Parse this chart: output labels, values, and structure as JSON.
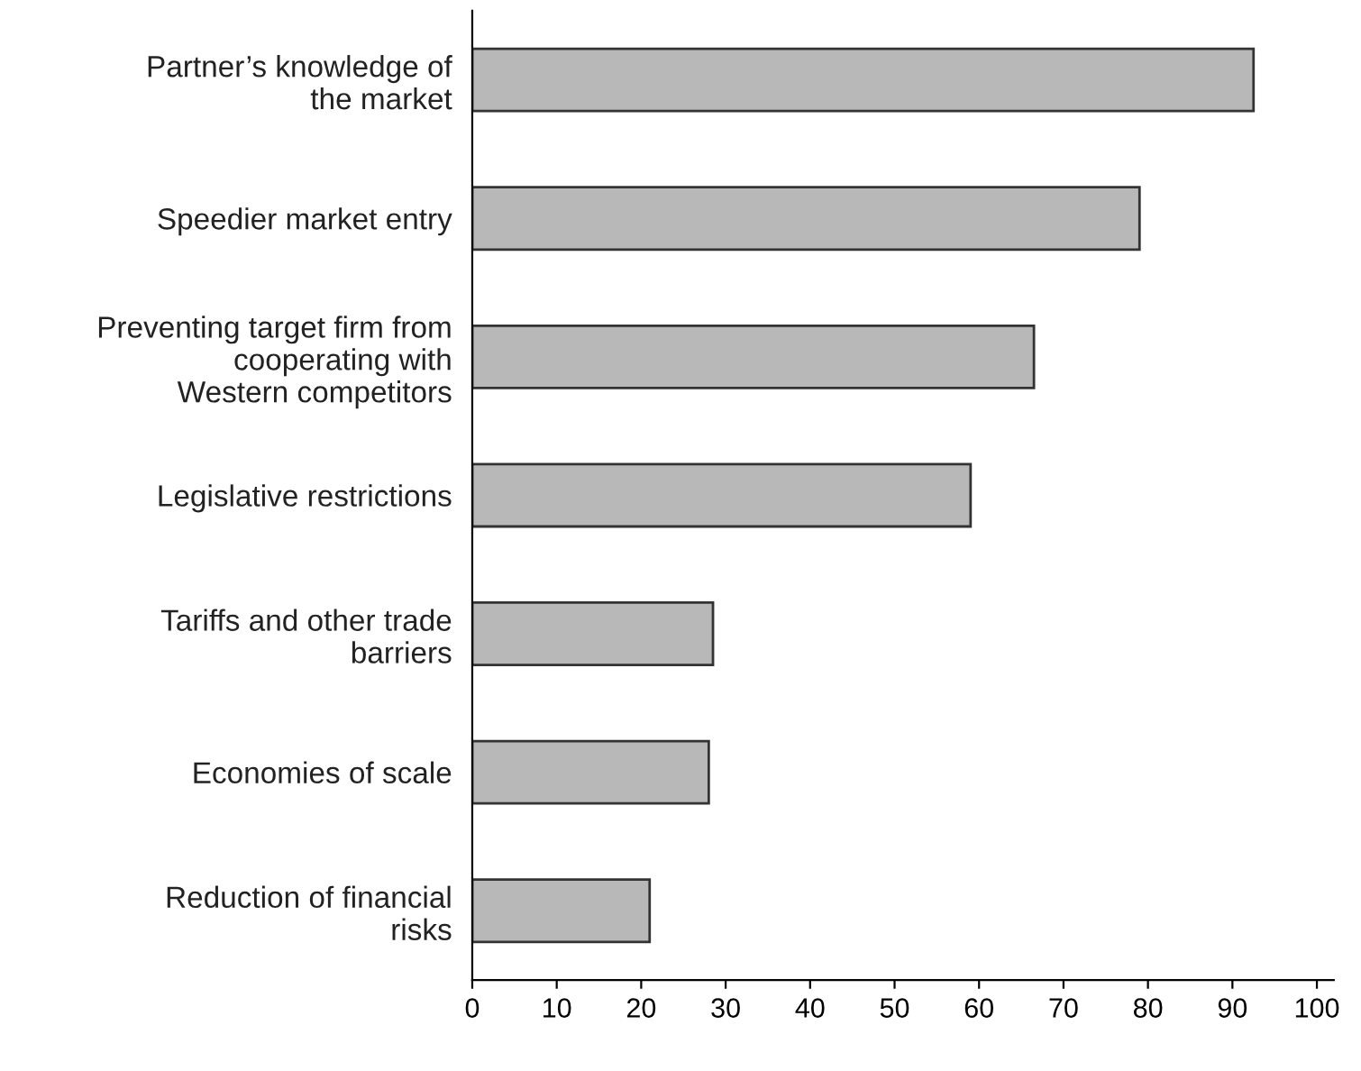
{
  "chart_data": {
    "type": "bar",
    "orientation": "horizontal",
    "categories": [
      "Partner’s knowledge of\nthe market",
      "Speedier market entry",
      "Preventing target firm from\ncooperating with\nWestern competitors",
      "Legislative restrictions",
      "Tariffs and other trade\nbarriers",
      "Economies of scale",
      "Reduction of financial\nrisks"
    ],
    "values": [
      92.5,
      79,
      66.5,
      59,
      28.5,
      28,
      21
    ],
    "color": "#b8b8b8",
    "xlim": [
      0,
      102
    ],
    "xticks": [
      0,
      10,
      20,
      30,
      40,
      50,
      60,
      70,
      80,
      90,
      100
    ],
    "grid": false
  }
}
